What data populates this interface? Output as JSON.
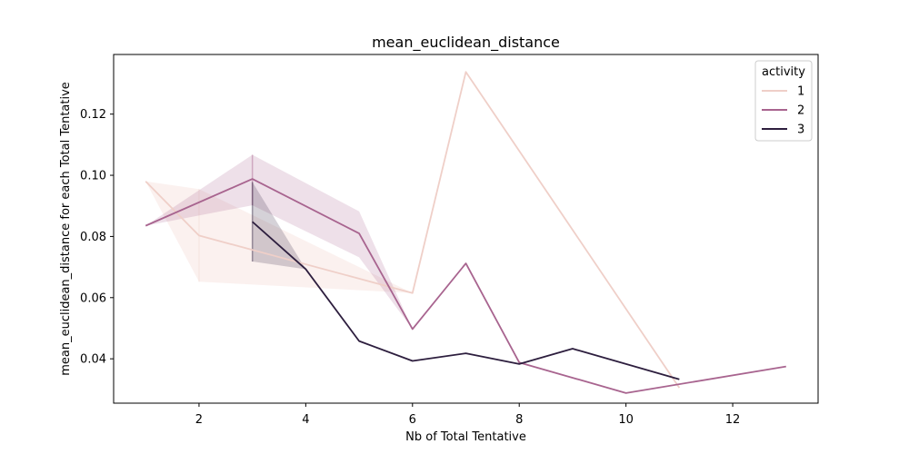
{
  "chart_data": {
    "type": "line",
    "title": "mean_euclidean_distance",
    "xlabel": "Nb of Total Tentative",
    "ylabel": "mean_euclidean_distance for each Total Tentative",
    "xlim": [
      0.4,
      13.6
    ],
    "ylim": [
      0.0255,
      0.1395
    ],
    "xticks": [
      2,
      4,
      6,
      8,
      10,
      12
    ],
    "yticks": [
      0.04,
      0.06,
      0.08,
      0.1,
      0.12
    ],
    "ytick_labels": [
      "0.04",
      "0.06",
      "0.08",
      "0.10",
      "0.12"
    ],
    "grid": false,
    "legend": {
      "title": "activity",
      "placement": "top-right"
    },
    "series": [
      {
        "name": "1",
        "color": "#efcfc8",
        "band_color": "#f5ddd6",
        "x": [
          1,
          2,
          6,
          7,
          11
        ],
        "y": [
          0.098,
          0.0803,
          0.0615,
          0.1338,
          0.0305
        ],
        "ci_lower": [
          0.098,
          0.0652,
          0.0615,
          0.1338,
          0.0305
        ],
        "ci_upper": [
          0.098,
          0.0955,
          0.0615,
          0.1338,
          0.0305
        ]
      },
      {
        "name": "2",
        "color": "#a8648f",
        "band_color": "#a8648f",
        "x": [
          1,
          3,
          5,
          6,
          7,
          8,
          10,
          13
        ],
        "y": [
          0.0835,
          0.0988,
          0.081,
          0.0497,
          0.0712,
          0.0388,
          0.0288,
          0.0375
        ],
        "ci_lower": [
          0.0835,
          0.0902,
          0.0732,
          0.0497,
          0.0712,
          0.0388,
          0.0288,
          0.0375
        ],
        "ci_upper": [
          0.0835,
          0.1067,
          0.0882,
          0.0497,
          0.0712,
          0.0388,
          0.0288,
          0.0375
        ]
      },
      {
        "name": "3",
        "color": "#2d1e3e",
        "band_color": "#2d1e3e",
        "x": [
          3,
          4,
          5,
          6,
          7,
          8,
          9,
          11
        ],
        "y": [
          0.0848,
          0.0693,
          0.0458,
          0.0393,
          0.0418,
          0.0383,
          0.0433,
          0.0333
        ],
        "ci_lower": [
          0.0718,
          0.0693,
          0.0458,
          0.0393,
          0.0418,
          0.0383,
          0.0433,
          0.0333
        ],
        "ci_upper": [
          0.0978,
          0.0693,
          0.0458,
          0.0393,
          0.0418,
          0.0383,
          0.0433,
          0.0333
        ]
      }
    ]
  }
}
